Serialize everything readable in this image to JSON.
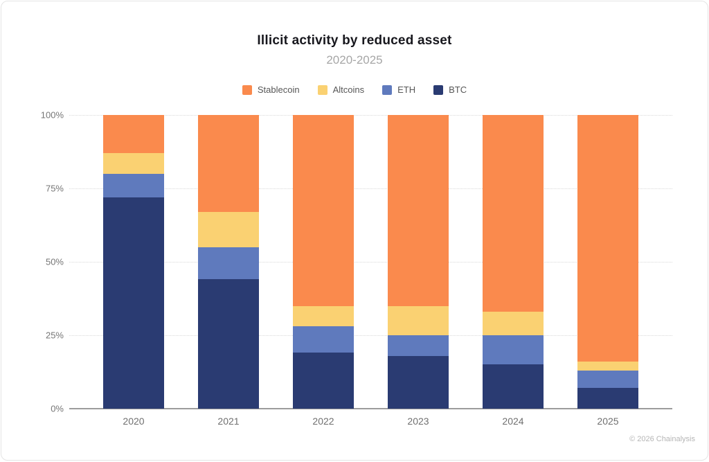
{
  "footer": {
    "text": "© 2026 Chainalysis"
  },
  "chart_data": {
    "type": "bar",
    "stacked": true,
    "units": "percent",
    "title": "Illicit activity by reduced asset",
    "subtitle": "2020-2025",
    "categories": [
      "2020",
      "2021",
      "2022",
      "2023",
      "2024",
      "2025"
    ],
    "series": [
      {
        "name": "BTC",
        "color": "#2A3B72",
        "values": [
          72,
          44,
          19,
          18,
          15,
          7
        ]
      },
      {
        "name": "ETH",
        "color": "#5F7ABD",
        "values": [
          8,
          11,
          9,
          7,
          10,
          6
        ]
      },
      {
        "name": "Altcoins",
        "color": "#FAD172",
        "values": [
          7,
          12,
          7,
          10,
          8,
          3
        ]
      },
      {
        "name": "Stablecoin",
        "color": "#FA8A4D",
        "values": [
          13,
          33,
          65,
          65,
          67,
          84
        ]
      }
    ],
    "stack_order_note": "series listed bottom-to-top",
    "legend_order": [
      "Stablecoin",
      "Altcoins",
      "ETH",
      "BTC"
    ],
    "legend_position": "top",
    "y_ticks": [
      {
        "label": "100%",
        "value": 100
      },
      {
        "label": "75%",
        "value": 75
      },
      {
        "label": "50%",
        "value": 50
      },
      {
        "label": "25%",
        "value": 25
      },
      {
        "label": "0%",
        "value": 0
      }
    ],
    "ylim": [
      0,
      100
    ],
    "grid": "horizontal-dotted"
  }
}
